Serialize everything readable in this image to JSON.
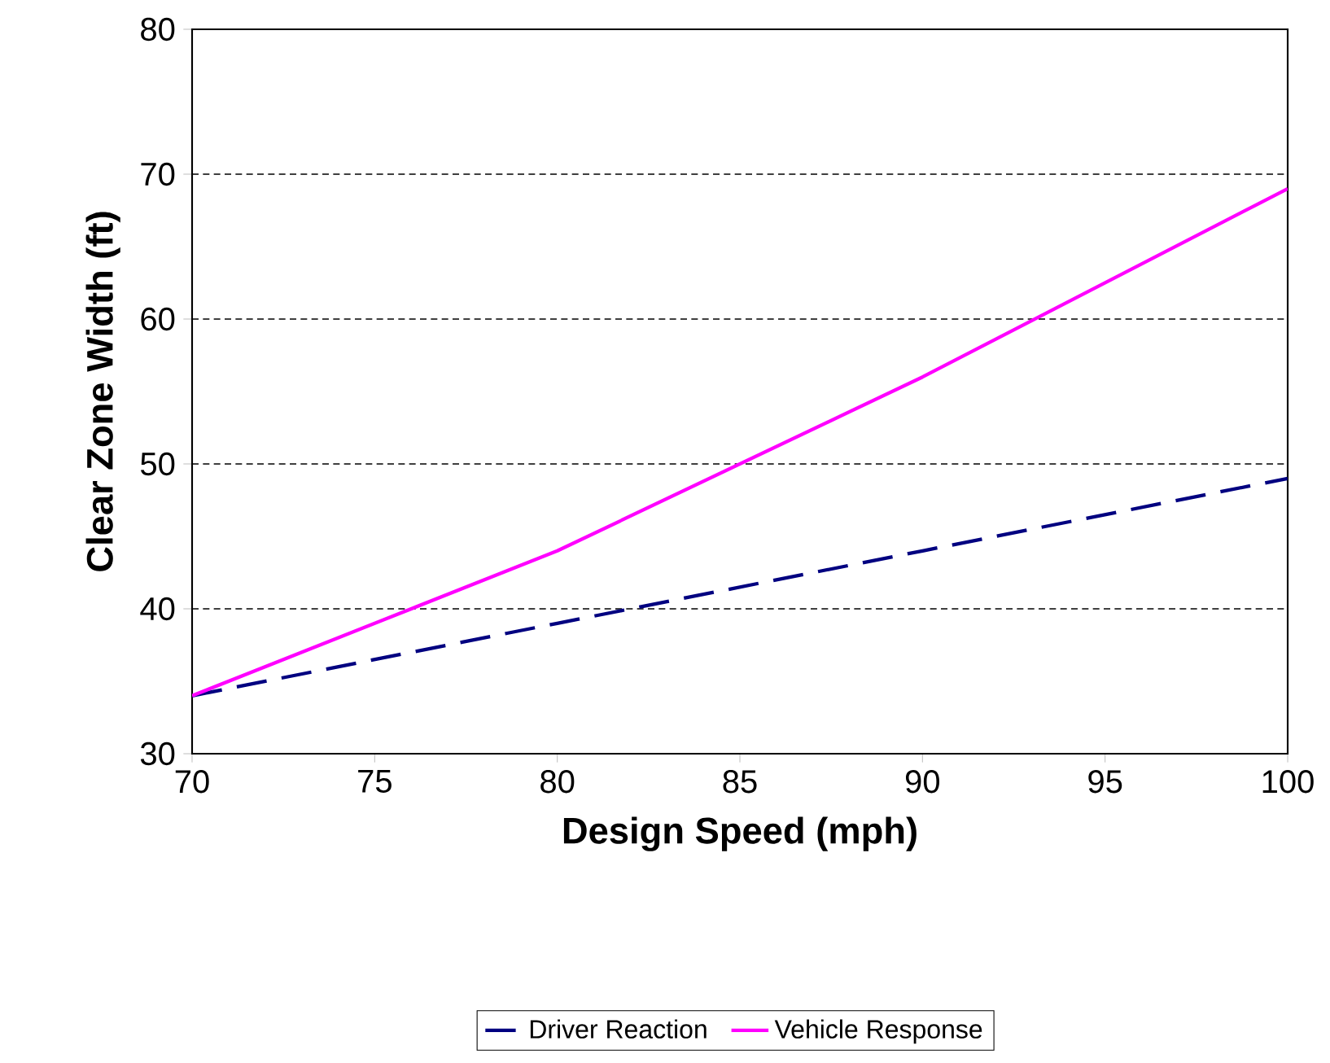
{
  "chart_data": {
    "type": "line",
    "xlabel": "Design Speed (mph)",
    "ylabel": "Clear Zone Width (ft)",
    "x": [
      70,
      80,
      90,
      100
    ],
    "series": [
      {
        "name": "Driver Reaction",
        "color": "#000080",
        "line_style": "dashed",
        "values": [
          34,
          39,
          44,
          49
        ]
      },
      {
        "name": "Vehicle Response",
        "color": "#ff00ff",
        "line_style": "solid",
        "values": [
          34,
          44,
          56,
          69
        ]
      }
    ],
    "xlim": [
      70,
      100
    ],
    "xticks": [
      70,
      75,
      80,
      85,
      90,
      95,
      100
    ],
    "ylim": [
      30,
      80
    ],
    "yticks": [
      30,
      40,
      50,
      60,
      70,
      80
    ],
    "grid": "y",
    "legend": "bottom",
    "marker": "none"
  }
}
